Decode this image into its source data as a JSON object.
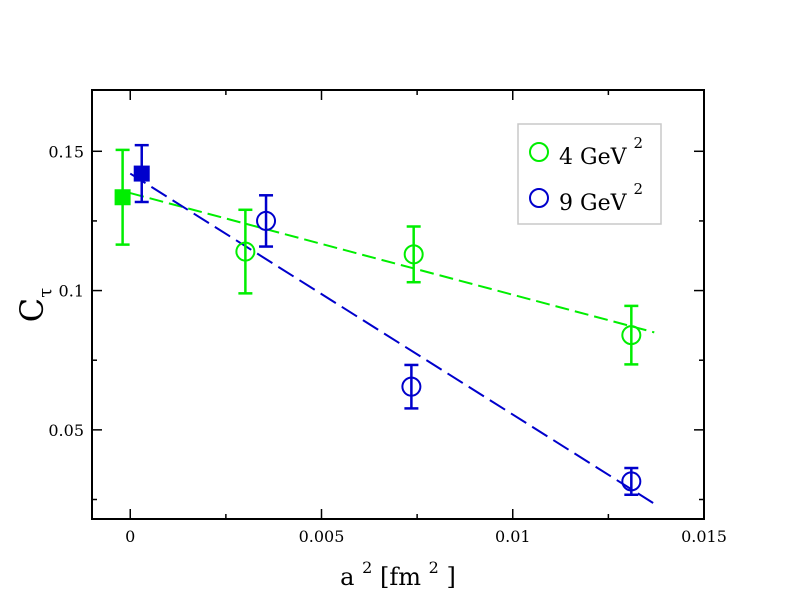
{
  "chart_data": {
    "type": "scatter",
    "title": "",
    "xlabel": "a",
    "xlabel_sup": "2",
    "xlabel_unit": "[fm",
    "xlabel_unit_sup": "2",
    "xlabel_close": "]",
    "ylabel": "C",
    "ylabel_sub": "τ",
    "xlim": [
      -0.001,
      0.015
    ],
    "ylim": [
      0.018,
      0.172
    ],
    "xticks": [
      0,
      0.005,
      0.01,
      0.015
    ],
    "xtick_labels": [
      "0",
      "0.005",
      "0.01",
      "0.015"
    ],
    "yticks": [
      0.05,
      0.1,
      0.15
    ],
    "ytick_labels": [
      "0.05",
      "0.1",
      "0.15"
    ],
    "grid": false,
    "legend_position": "top-right",
    "series": [
      {
        "name": "4 GeV",
        "name_sup": "2",
        "color": "#00ee00",
        "marker": "circle-open",
        "points": [
          {
            "x": 0.00301,
            "y": 0.114,
            "err": 0.015
          },
          {
            "x": 0.00741,
            "y": 0.113,
            "err": 0.01
          },
          {
            "x": 0.0131,
            "y": 0.084,
            "err": 0.0105
          }
        ],
        "extrapolated": {
          "x": -0.0002,
          "y": 0.1335,
          "err": 0.017
        },
        "fit": {
          "x0": 0.0,
          "y0": 0.135,
          "x1": 0.0137,
          "y1": 0.085
        }
      },
      {
        "name": "9 GeV",
        "name_sup": "2",
        "color": "#0000cc",
        "marker": "circle-open",
        "points": [
          {
            "x": 0.00355,
            "y": 0.125,
            "err": 0.0092
          },
          {
            "x": 0.00735,
            "y": 0.0655,
            "err": 0.0078
          },
          {
            "x": 0.0131,
            "y": 0.0315,
            "err": 0.0048
          }
        ],
        "extrapolated": {
          "x": 0.0003,
          "y": 0.142,
          "err": 0.0102
        },
        "fit": {
          "x0": 0.0,
          "y0": 0.142,
          "x1": 0.0137,
          "y1": 0.0235
        }
      }
    ]
  }
}
